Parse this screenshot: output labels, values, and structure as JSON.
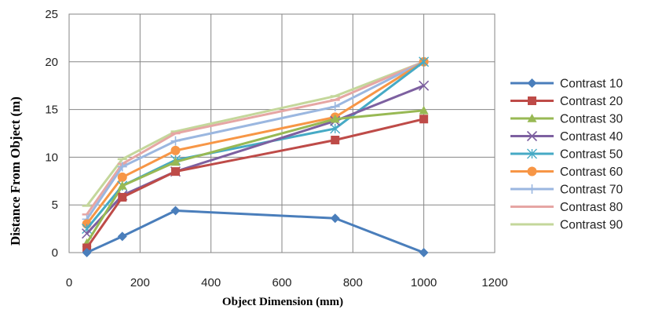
{
  "chart_data": {
    "type": "line",
    "title": "",
    "xlabel": "Object Dimension (mm)",
    "ylabel": "Distance From Object (m)",
    "xlim": [
      0,
      1200
    ],
    "ylim": [
      0,
      25
    ],
    "xticks": [
      0,
      200,
      400,
      600,
      800,
      1000,
      1200
    ],
    "yticks": [
      0,
      5,
      10,
      15,
      20,
      25
    ],
    "grid": true,
    "legend_position": "right",
    "x": [
      50,
      150,
      300,
      750,
      1000
    ],
    "series": [
      {
        "name": "Contrast 10",
        "color": "#4a7ebb",
        "marker": "diamond",
        "values": [
          0,
          1.7,
          4.4,
          3.6,
          0
        ]
      },
      {
        "name": "Contrast 20",
        "color": "#be4b48",
        "marker": "square",
        "values": [
          0.5,
          5.8,
          8.5,
          11.8,
          14
        ]
      },
      {
        "name": "Contrast 30",
        "color": "#98b954",
        "marker": "triangle",
        "values": [
          1,
          7,
          9.5,
          14,
          14.9
        ]
      },
      {
        "name": "Contrast 40",
        "color": "#7d60a0",
        "marker": "x",
        "values": [
          2,
          6,
          8.5,
          13.8,
          17.5
        ]
      },
      {
        "name": "Contrast 50",
        "color": "#46aac5",
        "marker": "asterisk",
        "values": [
          2.5,
          7,
          9.7,
          13,
          20
        ]
      },
      {
        "name": "Contrast 60",
        "color": "#f79646",
        "marker": "circle",
        "values": [
          3,
          7.9,
          10.7,
          14.2,
          20
        ]
      },
      {
        "name": "Contrast 70",
        "color": "#9bb7e0",
        "marker": "plus",
        "values": [
          3.5,
          9,
          11.7,
          15.3,
          20
        ]
      },
      {
        "name": "Contrast 80",
        "color": "#e6a6a4",
        "marker": "dash",
        "values": [
          4,
          9.3,
          12.5,
          16,
          20
        ]
      },
      {
        "name": "Contrast 90",
        "color": "#c4d79b",
        "marker": "dash",
        "values": [
          4.9,
          9.8,
          12.7,
          16.4,
          20
        ]
      }
    ]
  }
}
